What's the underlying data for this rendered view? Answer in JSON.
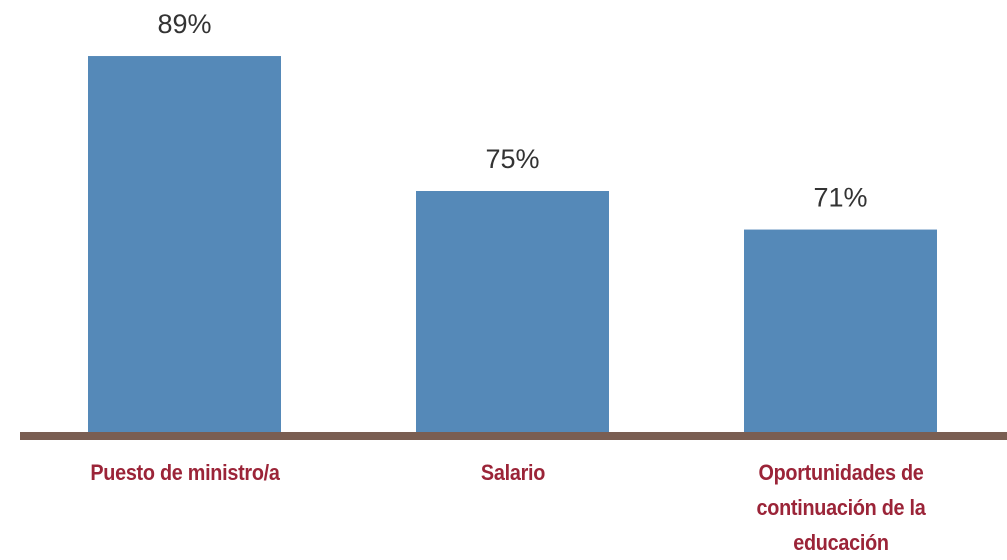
{
  "chart_data": {
    "type": "bar",
    "categories": [
      "Puesto de ministro/a",
      "Salario",
      "Oportunidades de continuación de la educación"
    ],
    "values": [
      89,
      75,
      71
    ],
    "value_labels": [
      "89%",
      "75%",
      "71%"
    ],
    "color": "#5589b8",
    "axis_color": "#7a5e52",
    "label_color": "#9b2438",
    "ylim": [
      50,
      90
    ]
  }
}
